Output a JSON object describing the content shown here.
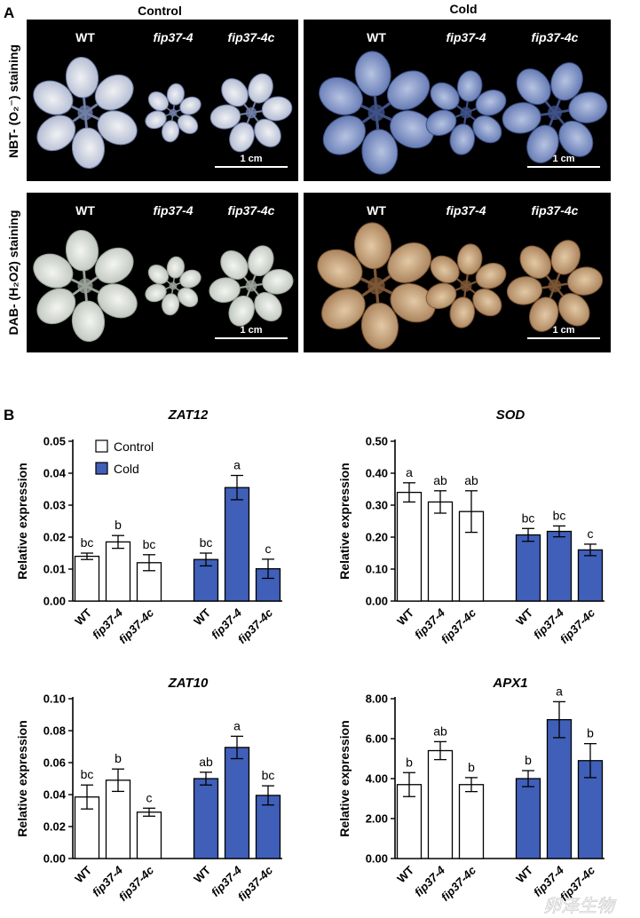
{
  "panel_a": {
    "letter": "A",
    "conditions": [
      "Control",
      "Cold"
    ],
    "genotypes": [
      "WT",
      "fip37-4",
      "fip37-4c"
    ],
    "row_labels": [
      "NBT- (O₂⁻) staining",
      "DAB- (H₂O2) staining"
    ],
    "scale_bar_labels": [
      "1 cm",
      "1 cm",
      "1 cm",
      "1 cm"
    ],
    "stain_colors": {
      "nbt_control": "#d3d8e3",
      "nbt_cold": "#8496c4",
      "dab_control": "#dfe4dc",
      "dab_cold": "#c8a882"
    }
  },
  "panel_b": {
    "letter": "B",
    "legend": {
      "control": "Control",
      "cold": "Cold"
    },
    "colors": {
      "control_fill": "#ffffff",
      "cold_fill": "#3f5fb8"
    },
    "watermark": "卵泽生物"
  },
  "chart_data": [
    {
      "type": "bar",
      "title": "ZAT12",
      "ylabel": "Relative expression",
      "ylim": [
        0,
        0.05
      ],
      "yticks": [
        "0.00",
        "0.01",
        "0.02",
        "0.03",
        "0.04",
        "0.05"
      ],
      "categories": [
        "WT",
        "fip37-4",
        "fip37-4c"
      ],
      "series": [
        {
          "name": "Control",
          "values": [
            0.014,
            0.0185,
            0.012
          ],
          "errors": [
            0.001,
            0.002,
            0.0025
          ],
          "letters": [
            "bc",
            "b",
            "bc"
          ]
        },
        {
          "name": "Cold",
          "values": [
            0.013,
            0.0355,
            0.0101
          ],
          "errors": [
            0.002,
            0.0038,
            0.003
          ],
          "letters": [
            "bc",
            "a",
            "c"
          ]
        }
      ]
    },
    {
      "type": "bar",
      "title": "SOD",
      "ylabel": "Relative expression",
      "ylim": [
        0,
        0.5
      ],
      "yticks": [
        "0.00",
        "0.10",
        "0.20",
        "0.30",
        "0.40",
        "0.50"
      ],
      "categories": [
        "WT",
        "fip37-4",
        "fip37-4c"
      ],
      "series": [
        {
          "name": "Control",
          "values": [
            0.34,
            0.31,
            0.28
          ],
          "errors": [
            0.03,
            0.035,
            0.065
          ],
          "letters": [
            "a",
            "ab",
            "ab"
          ]
        },
        {
          "name": "Cold",
          "values": [
            0.207,
            0.218,
            0.16
          ],
          "errors": [
            0.02,
            0.017,
            0.018
          ],
          "letters": [
            "bc",
            "bc",
            "c"
          ]
        }
      ]
    },
    {
      "type": "bar",
      "title": "ZAT10",
      "ylabel": "Relative expression",
      "ylim": [
        0,
        0.1
      ],
      "yticks": [
        "0.00",
        "0.02",
        "0.04",
        "0.06",
        "0.08",
        "0.10"
      ],
      "categories": [
        "WT",
        "fip37-4",
        "fip37-4c"
      ],
      "series": [
        {
          "name": "Control",
          "values": [
            0.0385,
            0.049,
            0.029
          ],
          "errors": [
            0.0075,
            0.007,
            0.0025
          ],
          "letters": [
            "bc",
            "b",
            "c"
          ]
        },
        {
          "name": "Cold",
          "values": [
            0.05,
            0.0695,
            0.0395
          ],
          "errors": [
            0.004,
            0.007,
            0.006
          ],
          "letters": [
            "ab",
            "a",
            "bc"
          ]
        }
      ]
    },
    {
      "type": "bar",
      "title": "APX1",
      "ylabel": "Relative expression",
      "ylim": [
        0,
        8
      ],
      "yticks": [
        "0.00",
        "2.00",
        "4.00",
        "6.00",
        "8.00"
      ],
      "categories": [
        "WT",
        "fip37-4",
        "fip37-4c"
      ],
      "series": [
        {
          "name": "Control",
          "values": [
            3.7,
            5.4,
            3.7
          ],
          "errors": [
            0.6,
            0.45,
            0.35
          ],
          "letters": [
            "b",
            "ab",
            "b"
          ]
        },
        {
          "name": "Cold",
          "values": [
            4.0,
            6.95,
            4.9
          ],
          "errors": [
            0.4,
            0.9,
            0.85
          ],
          "letters": [
            "b",
            "a",
            "b"
          ]
        }
      ]
    }
  ]
}
